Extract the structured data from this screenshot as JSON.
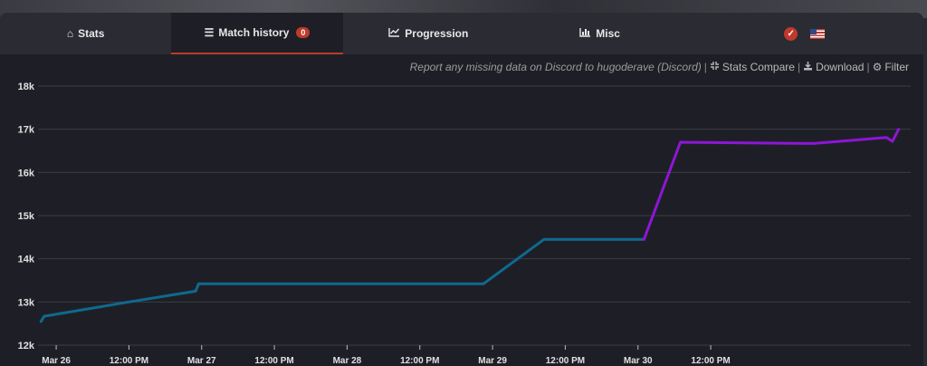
{
  "tabs": [
    {
      "label": "Stats",
      "icon": "home-icon"
    },
    {
      "label": "Match history",
      "icon": "list-icon",
      "badge": "0"
    },
    {
      "label": "Progression",
      "icon": "line-chart-icon"
    },
    {
      "label": "Misc",
      "icon": "bar-chart-icon"
    }
  ],
  "toolbar": {
    "note": "Report any missing data on Discord to hugoderave (Discord)",
    "stats_compare": "Stats Compare",
    "download": "Download",
    "filter": "Filter"
  },
  "colors": {
    "series_before": "#0e6a8f",
    "series_after": "#8d16d6",
    "accent": "#c0392b"
  },
  "chart_data": {
    "type": "line",
    "ylim": [
      12000,
      18000
    ],
    "yticks": [
      12000,
      13000,
      14000,
      15000,
      16000,
      17000,
      18000
    ],
    "ytick_labels": [
      "12k",
      "13k",
      "14k",
      "15k",
      "16k",
      "17k",
      "18k"
    ],
    "xlim": [
      "Mar 25 21:00",
      "Mar 31 21:00"
    ],
    "xtick_labels": [
      "Mar 26",
      "12:00 PM",
      "Mar 27",
      "12:00 PM",
      "Mar 28",
      "12:00 PM",
      "Mar 29",
      "12:00 PM",
      "Mar 30",
      "12:00 PM"
    ],
    "grid": true,
    "series": [
      {
        "color": "#0e6a8f",
        "points": [
          [
            "Mar 25 21:30",
            12550
          ],
          [
            "Mar 25 22:00",
            12670
          ],
          [
            "Mar 26 12:00",
            13000
          ],
          [
            "Mar 26 23:00",
            13250
          ],
          [
            "Mar 26 23:30",
            13420
          ],
          [
            "Mar 28 22:30",
            13420
          ],
          [
            "Mar 29 08:30",
            14450
          ],
          [
            "Mar 30 01:00",
            14450
          ]
        ]
      },
      {
        "color": "#8d16d6",
        "points": [
          [
            "Mar 30 01:00",
            14450
          ],
          [
            "Mar 30 07:00",
            16700
          ],
          [
            "Mar 31 05:00",
            16670
          ],
          [
            "Mar 31 17:00",
            16810
          ],
          [
            "Mar 31 18:00",
            16720
          ],
          [
            "Mar 31 19:00",
            17000
          ]
        ]
      }
    ]
  }
}
